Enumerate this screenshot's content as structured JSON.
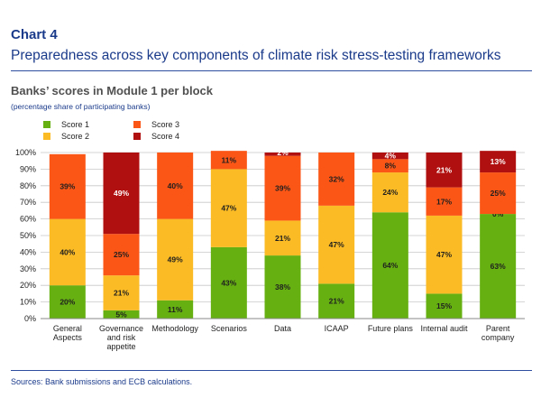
{
  "header": {
    "chart_label": "Chart 4",
    "title": "Preparedness across key components of climate risk stress-testing frameworks"
  },
  "subtitle": "Banks’ scores in Module 1 per block",
  "unit_note": "(percentage share of participating banks)",
  "legend": [
    {
      "name": "Score 1",
      "color": "#66b012"
    },
    {
      "name": "Score 2",
      "color": "#fbbb24"
    },
    {
      "name": "Score 3",
      "color": "#fc5616"
    },
    {
      "name": "Score 4",
      "color": "#b0100f"
    }
  ],
  "source": "Sources: Bank submissions and ECB calculations.",
  "chart_data": {
    "type": "bar",
    "stacked": true,
    "title": "Banks’ scores in Module 1 per block",
    "ylabel": "percentage share of participating banks",
    "ylim": [
      0,
      100
    ],
    "yticks": [
      "0%",
      "10%",
      "20%",
      "30%",
      "40%",
      "50%",
      "60%",
      "70%",
      "80%",
      "90%",
      "100%"
    ],
    "grid": true,
    "categories": [
      [
        "General",
        "Aspects"
      ],
      [
        "Governance",
        "and risk",
        "appetite"
      ],
      [
        "Methodology"
      ],
      [
        "Scenarios"
      ],
      [
        "Data"
      ],
      [
        "ICAAP"
      ],
      [
        "Future plans"
      ],
      [
        "Internal audit"
      ],
      [
        "Parent",
        "company"
      ]
    ],
    "series": [
      {
        "name": "Score 1",
        "color": "#66b012",
        "values": [
          20,
          5,
          11,
          43,
          38,
          21,
          64,
          15,
          63
        ],
        "labels": [
          "20%",
          "5%",
          "11%",
          "43%",
          "38%",
          "21%",
          "64%",
          "15%",
          "63%"
        ]
      },
      {
        "name": "Score 2",
        "color": "#fbbb24",
        "values": [
          40,
          21,
          49,
          47,
          21,
          47,
          24,
          47,
          0
        ],
        "labels": [
          "40%",
          "21%",
          "49%",
          "47%",
          "21%",
          "47%",
          "24%",
          "47%",
          "0%"
        ]
      },
      {
        "name": "Score 3",
        "color": "#fc5616",
        "values": [
          39,
          25,
          40,
          11,
          39,
          32,
          8,
          17,
          25
        ],
        "labels": [
          "39%",
          "25%",
          "40%",
          "11%",
          "39%",
          "32%",
          "8%",
          "17%",
          "25%"
        ]
      },
      {
        "name": "Score 4",
        "color": "#b0100f",
        "values": [
          0,
          49,
          0,
          0,
          2,
          0,
          4,
          21,
          13
        ],
        "labels": [
          "",
          "49%",
          "",
          "",
          "2%",
          "",
          "4%",
          "21%",
          "13%"
        ]
      }
    ]
  }
}
